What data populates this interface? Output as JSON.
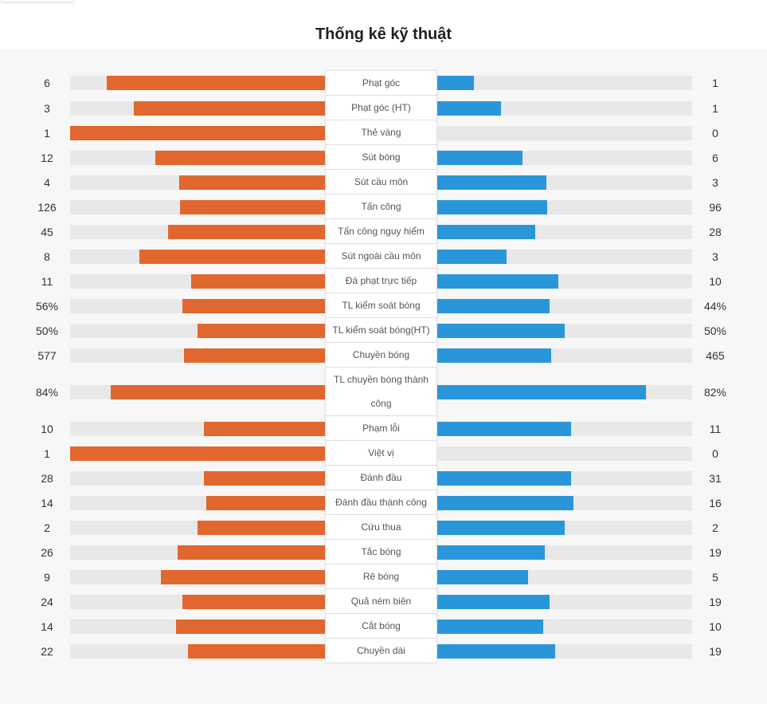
{
  "title": "Thống kê kỹ thuật",
  "colors": {
    "home": "#e2672e",
    "away": "#2a96da",
    "track": "#e8e8e8"
  },
  "stats": [
    {
      "label": "Phạt góc",
      "home": "6",
      "away": "1"
    },
    {
      "label": "Phạt góc (HT)",
      "home": "3",
      "away": "1"
    },
    {
      "label": "Thẻ vàng",
      "home": "1",
      "away": "0"
    },
    {
      "label": "Sút bóng",
      "home": "12",
      "away": "6"
    },
    {
      "label": "Sút cầu môn",
      "home": "4",
      "away": "3"
    },
    {
      "label": "Tấn công",
      "home": "126",
      "away": "96"
    },
    {
      "label": "Tấn công nguy hiểm",
      "home": "45",
      "away": "28"
    },
    {
      "label": "Sút ngoài cầu môn",
      "home": "8",
      "away": "3"
    },
    {
      "label": "Đá phạt trực tiếp",
      "home": "11",
      "away": "10"
    },
    {
      "label": "TL kiểm soát bóng",
      "home": "56%",
      "away": "44%"
    },
    {
      "label": "TL kiểm soát bóng(HT)",
      "home": "50%",
      "away": "50%"
    },
    {
      "label": "Chuyền bóng",
      "home": "577",
      "away": "465"
    },
    {
      "label": "TL chuyền bóng thành công",
      "home": "84%",
      "away": "82%"
    },
    {
      "label": "Phạm lỗi",
      "home": "10",
      "away": "11"
    },
    {
      "label": "Việt vị",
      "home": "1",
      "away": "0"
    },
    {
      "label": "Đánh đầu",
      "home": "28",
      "away": "31"
    },
    {
      "label": "Đánh đầu thành công",
      "home": "14",
      "away": "16"
    },
    {
      "label": "Cứu thua",
      "home": "2",
      "away": "2"
    },
    {
      "label": "Tắc bóng",
      "home": "26",
      "away": "19"
    },
    {
      "label": "Rê bóng",
      "home": "9",
      "away": "5"
    },
    {
      "label": "Quả ném biên",
      "home": "24",
      "away": "19"
    },
    {
      "label": "Cắt bóng",
      "home": "14",
      "away": "10"
    },
    {
      "label": "Chuyền dài",
      "home": "22",
      "away": "19"
    }
  ]
}
